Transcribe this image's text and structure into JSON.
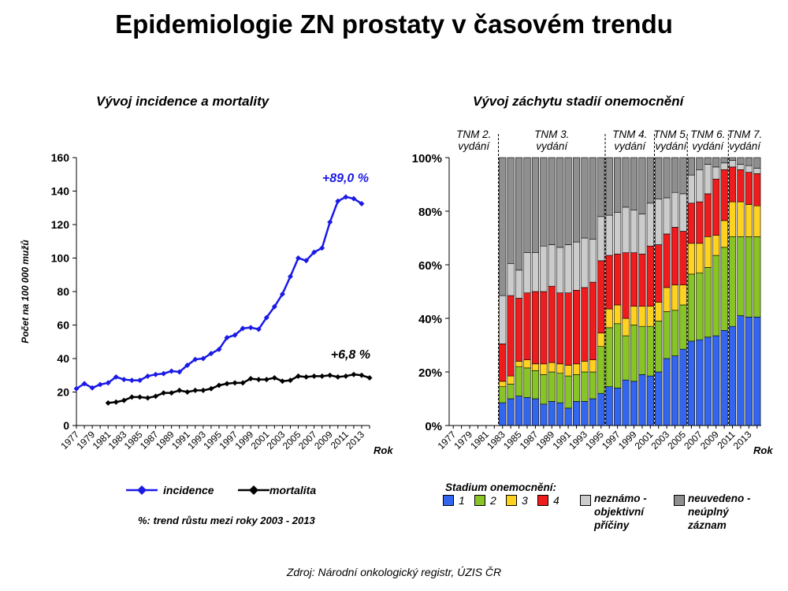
{
  "page": {
    "title": "Epidemiologie ZN prostaty v časovém trendu",
    "source": "Zdroj: Národní onkologický registr, ÚZIS ČR"
  },
  "chart_data": [
    {
      "type": "line",
      "title": "Vývoj incidence a mortality",
      "xlabel": "Rok",
      "ylabel": "Počet na 100 000 mužů",
      "ylim": [
        0,
        160
      ],
      "yticks": [
        0,
        20,
        40,
        60,
        80,
        100,
        120,
        140,
        160
      ],
      "xticks": [
        "1977",
        "1979",
        "1981",
        "1983",
        "1985",
        "1987",
        "1989",
        "1991",
        "1993",
        "1995",
        "1997",
        "1999",
        "2001",
        "2003",
        "2005",
        "2007",
        "2009",
        "2011",
        "2013"
      ],
      "legend_position": "bottom",
      "series": [
        {
          "name": "incidence",
          "color": "#1a1ae6",
          "x": [
            1977,
            1978,
            1979,
            1980,
            1981,
            1982,
            1983,
            1984,
            1985,
            1986,
            1987,
            1988,
            1989,
            1990,
            1991,
            1992,
            1993,
            1994,
            1995,
            1996,
            1997,
            1998,
            1999,
            2000,
            2001,
            2002,
            2003,
            2004,
            2005,
            2006,
            2007,
            2008,
            2009,
            2010,
            2011,
            2012,
            2013,
            2014
          ],
          "values": [
            22,
            25,
            22.5,
            24.5,
            25.5,
            29,
            27.5,
            27,
            27,
            29.5,
            30.5,
            31,
            32.5,
            32,
            36,
            39.5,
            40,
            43,
            45.5,
            52.5,
            54,
            58,
            58.5,
            57.5,
            64.5,
            71,
            78.5,
            89,
            100,
            98.5,
            103.5,
            106,
            121.5,
            134,
            136.5,
            135.5,
            132.5,
            null
          ]
        },
        {
          "name": "mortalita",
          "color": "#000000",
          "x": [
            1977,
            1978,
            1979,
            1980,
            1981,
            1982,
            1983,
            1984,
            1985,
            1986,
            1987,
            1988,
            1989,
            1990,
            1991,
            1992,
            1993,
            1994,
            1995,
            1996,
            1997,
            1998,
            1999,
            2000,
            2001,
            2002,
            2003,
            2004,
            2005,
            2006,
            2007,
            2008,
            2009,
            2010,
            2011,
            2012,
            2013,
            2014
          ],
          "values": [
            null,
            null,
            null,
            null,
            13.5,
            14,
            15,
            17,
            17,
            16.5,
            17.5,
            19.5,
            19.5,
            21,
            20,
            21,
            21,
            22,
            24,
            25,
            25.5,
            25.5,
            28,
            27.5,
            27.5,
            28.5,
            26.5,
            27,
            29.5,
            29,
            29.5,
            29.5,
            30,
            29,
            29.5,
            30.5,
            30,
            28.5
          ]
        }
      ],
      "annotations": [
        "+89,0 %",
        "+6,8 %"
      ],
      "note": "%: trend růstu mezi roky 2003 - 2013"
    },
    {
      "type": "bar",
      "stacked": true,
      "title": "Vývoj záchytu stadií onemocnění",
      "xlabel": "Rok",
      "ylabel": "",
      "ylim": [
        0,
        100
      ],
      "yticks": [
        "0%",
        "20%",
        "40%",
        "60%",
        "80%",
        "100%"
      ],
      "xticks": [
        "1977",
        "1979",
        "1981",
        "1983",
        "1985",
        "1987",
        "1989",
        "1991",
        "1993",
        "1995",
        "1997",
        "1999",
        "2001",
        "2003",
        "2005",
        "2007",
        "2009",
        "2011",
        "2013"
      ],
      "legend_title": "Stadium  onemocnění:",
      "categories": [
        1983,
        1984,
        1985,
        1986,
        1987,
        1988,
        1989,
        1990,
        1991,
        1992,
        1993,
        1994,
        1995,
        1996,
        1997,
        1998,
        1999,
        2000,
        2001,
        2002,
        2003,
        2004,
        2005,
        2006,
        2007,
        2008,
        2009,
        2010,
        2011,
        2012,
        2013,
        2014
      ],
      "series": [
        {
          "name": "1",
          "color": "#3366ee",
          "values": [
            8.5,
            10,
            11,
            10.5,
            10,
            8,
            9,
            8.5,
            6.5,
            9,
            9,
            10,
            12,
            14.5,
            14,
            17,
            16.5,
            19,
            18.5,
            20,
            25,
            26,
            28.5,
            31.5,
            32,
            33,
            33.5,
            35.5,
            37,
            41,
            40.5,
            40.5
          ]
        },
        {
          "name": "2",
          "color": "#88c425",
          "values": [
            6,
            5.5,
            11,
            11,
            10.5,
            11,
            11,
            11,
            12,
            10,
            11,
            10,
            17.5,
            22,
            24,
            16.5,
            21,
            18,
            18.5,
            19,
            17.5,
            17,
            16.5,
            25,
            25,
            26,
            30,
            31,
            33.5,
            29.5,
            30,
            30
          ]
        },
        {
          "name": "3",
          "color": "#ffd21f",
          "values": [
            2,
            3,
            2,
            3,
            2.5,
            4,
            3.5,
            3.5,
            4,
            4,
            4,
            4.5,
            5,
            7,
            7,
            6.5,
            7,
            7.5,
            7.5,
            7,
            9,
            9.5,
            7.5,
            11.5,
            11,
            11.5,
            7.5,
            10,
            13,
            13,
            12,
            11.5
          ]
        },
        {
          "name": "4",
          "color": "#ee1c1c",
          "values": [
            14,
            30,
            23.5,
            25,
            27,
            27,
            28.5,
            26.5,
            27,
            27.5,
            27.5,
            29,
            27,
            20,
            19,
            24.5,
            20,
            19.5,
            22.5,
            21.5,
            20,
            21.5,
            20,
            15,
            15.5,
            16,
            21,
            19,
            13,
            12,
            12,
            12
          ]
        },
        {
          "name": "neznámo - objektivní příčiny",
          "color": "#cccccc",
          "values": [
            18,
            12,
            10.5,
            15,
            14.5,
            17,
            15.5,
            17,
            18,
            18,
            18.5,
            16,
            16.5,
            15,
            15.5,
            17,
            16,
            15,
            16,
            17,
            13.5,
            13,
            14,
            10.5,
            12,
            11,
            4.5,
            2.5,
            2.5,
            2,
            2.5,
            2
          ]
        },
        {
          "name": "neuvedeno - neúplný záznam",
          "color": "#8f8f8f",
          "values": [
            51.5,
            39.5,
            42,
            35.5,
            35.5,
            33,
            32.5,
            33.5,
            32.5,
            31.5,
            30,
            30.5,
            22,
            21.5,
            20.5,
            18.5,
            19.5,
            21,
            17,
            15.5,
            15,
            13,
            13.5,
            6.5,
            4.5,
            2.5,
            3.5,
            2,
            1,
            2.5,
            3,
            4
          ]
        }
      ],
      "editions": [
        {
          "lines": [
            "TNM 2.",
            "vydání"
          ]
        },
        {
          "lines": [
            "TNM 3.",
            "vydání"
          ]
        },
        {
          "lines": [
            "TNM 4.",
            "vydání"
          ]
        },
        {
          "lines": [
            "TNM 5.",
            "vydání"
          ]
        },
        {
          "lines": [
            "TNM 6.",
            "vydání"
          ]
        },
        {
          "lines": [
            "TNM 7.",
            "vydání"
          ]
        }
      ]
    }
  ]
}
